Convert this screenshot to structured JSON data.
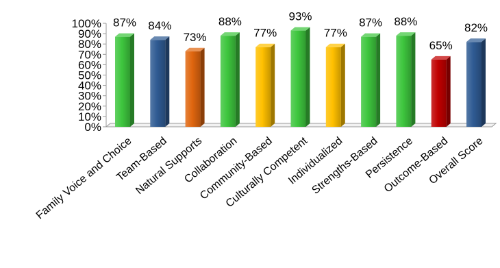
{
  "chart_data": {
    "type": "bar",
    "title": "",
    "xlabel": "",
    "ylabel": "",
    "ylim": [
      0,
      100
    ],
    "y_ticks": [
      "0%",
      "10%",
      "20%",
      "30%",
      "40%",
      "50%",
      "60%",
      "70%",
      "80%",
      "90%",
      "100%"
    ],
    "grid": false,
    "style": "3d-columns",
    "categories": [
      "Family Voice and Choice",
      "Team-Based",
      "Natural Supports",
      "Collaboration",
      "Community-Based",
      "Culturally Competent",
      "Individualized",
      "Strengths-Based",
      "Persistence",
      "Outcome-Based",
      "Overall Score"
    ],
    "values": [
      87,
      84,
      73,
      88,
      77,
      93,
      77,
      87,
      88,
      65,
      82
    ],
    "data_labels": [
      "87%",
      "84%",
      "73%",
      "88%",
      "77%",
      "93%",
      "77%",
      "87%",
      "88%",
      "65%",
      "82%"
    ],
    "colors": [
      "#3ec63e",
      "#2f5b93",
      "#e0660f",
      "#3ec63e",
      "#ffc000",
      "#3ec63e",
      "#ffc000",
      "#3ec63e",
      "#3ec63e",
      "#c00000",
      "#2f5b93"
    ]
  }
}
